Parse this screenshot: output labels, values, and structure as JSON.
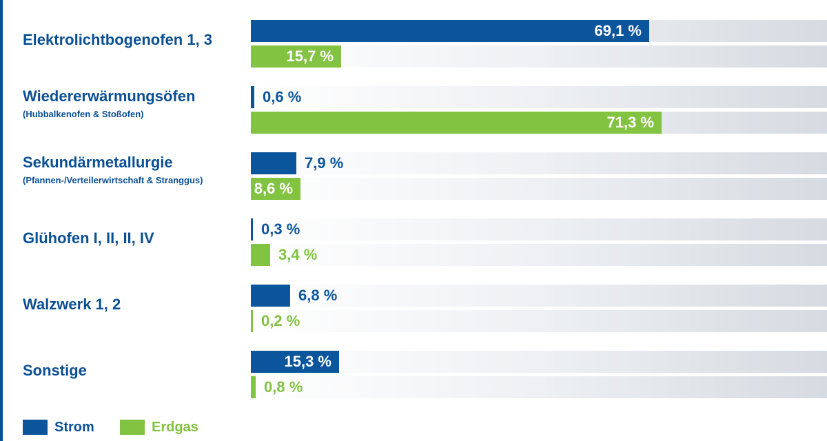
{
  "colors": {
    "strom": "#0a559c",
    "erdgas": "#82c341",
    "label": "#0a4f94",
    "rule": "#0a4f94"
  },
  "chart_data": {
    "type": "bar",
    "orientation": "horizontal",
    "xlim": [
      0,
      100
    ],
    "categories": [
      {
        "name": "Elektrolichtbogenofen 1, 3",
        "sub": ""
      },
      {
        "name": "Wiedererwärmungsöfen",
        "sub": "(Hubbalkenofen & Stoßofen)"
      },
      {
        "name": "Sekundärmetallurgie",
        "sub": "(Pfannen-/Verteilerwirtschaft & Stranggus)"
      },
      {
        "name": "Glühofen I, II, II, IV",
        "sub": ""
      },
      {
        "name": "Walzwerk 1, 2",
        "sub": ""
      },
      {
        "name": "Sonstige",
        "sub": ""
      }
    ],
    "series": [
      {
        "name": "Strom",
        "color": "#0a559c",
        "values": [
          69.1,
          0.6,
          7.9,
          0.3,
          6.8,
          15.3
        ],
        "labels": [
          "69,1 %",
          "0,6 %",
          "7,9 %",
          "0,3 %",
          "6,8 %",
          "15,3 %"
        ]
      },
      {
        "name": "Erdgas",
        "color": "#82c341",
        "values": [
          15.7,
          71.3,
          8.6,
          3.4,
          0.2,
          0.8
        ],
        "labels": [
          "15,7 %",
          "71,3 %",
          "8,6 %",
          "3,4 %",
          "0,2 %",
          "0,8 %"
        ]
      }
    ],
    "legend": {
      "position": "bottom-left"
    }
  }
}
